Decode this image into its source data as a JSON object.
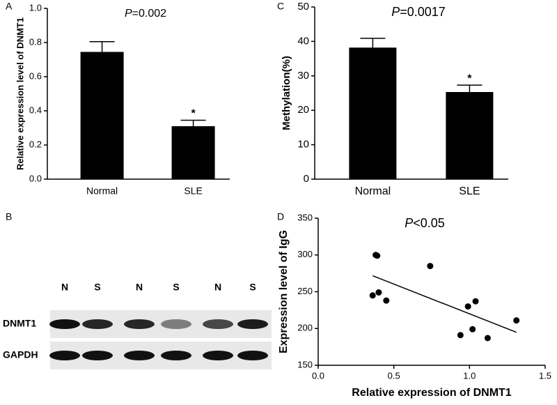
{
  "chart_data": [
    {
      "type": "bar",
      "panel_label": "A",
      "annotation": {
        "italic": "P",
        "text": "=0.002"
      },
      "ylabel": "Relative expression level of DNMT1",
      "categories": [
        "Normal",
        "SLE"
      ],
      "values": [
        0.745,
        0.31
      ],
      "errors": [
        0.06,
        0.035
      ],
      "markers": [
        null,
        "*"
      ],
      "color": "#000000",
      "ylim": [
        0,
        1
      ],
      "yticks": [
        {
          "value": 0,
          "label": "0.0"
        },
        0.2,
        0.4,
        0.6,
        0.8,
        {
          "value": 1,
          "label": "1.0"
        }
      ]
    },
    {
      "type": "blot",
      "panel_label": "B",
      "lanes": [
        "N",
        "S",
        "N",
        "S",
        "N",
        "S"
      ],
      "rows": [
        "DNMT1",
        "GAPDH"
      ]
    },
    {
      "type": "bar",
      "panel_label": "C",
      "annotation": {
        "italic": "P",
        "text": "=0.0017"
      },
      "ylabel": "Methylation(%)",
      "categories": [
        "Normal",
        "SLE"
      ],
      "values": [
        38.2,
        25.3
      ],
      "errors": [
        2.7,
        2.0
      ],
      "markers": [
        null,
        "*"
      ],
      "color": "#000000",
      "ylim": [
        0,
        50
      ],
      "yticks": [
        0,
        10,
        20,
        30,
        40,
        50
      ]
    },
    {
      "type": "scatter",
      "panel_label": "D",
      "annotation": {
        "italic": "P",
        "text": "<0.05"
      },
      "xlabel": "Relative expression of DNMT1",
      "ylabel": "Expression level of IgG",
      "x": [
        0.38,
        0.39,
        0.36,
        0.4,
        0.45,
        0.74,
        0.94,
        1.12,
        0.99,
        1.04,
        1.02,
        1.31
      ],
      "y": [
        300,
        299,
        245,
        249,
        238,
        285,
        191,
        187,
        230,
        237,
        199,
        211
      ],
      "color": "#000000",
      "fit_line": true,
      "xlim": [
        0,
        1.5
      ],
      "xticks": [
        {
          "value": 0,
          "label": "0.0"
        },
        0.5,
        {
          "value": 1,
          "label": "1.0"
        },
        1.5
      ],
      "ylim": [
        150,
        350
      ],
      "yticks": [
        150,
        200,
        250,
        300,
        350
      ]
    }
  ]
}
